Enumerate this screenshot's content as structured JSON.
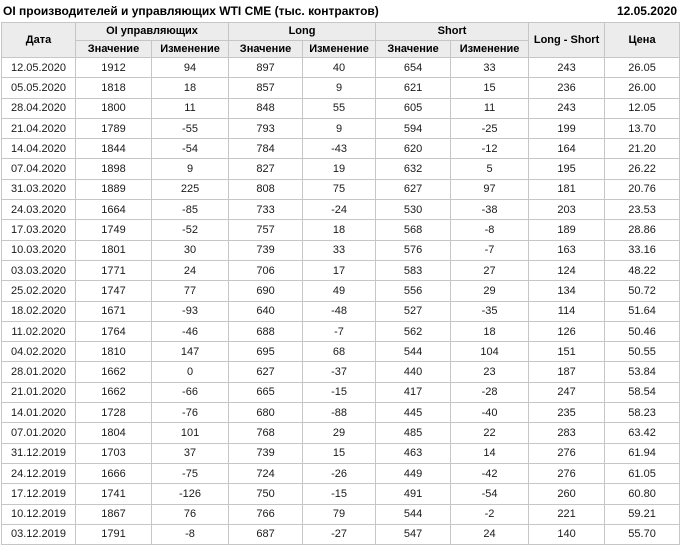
{
  "page": {
    "title": "OI производителей и управляющих WTI CME (тыс. контрактов)",
    "report_date": "12.05.2020"
  },
  "colors": {
    "positive_change": "#18a03a",
    "negative_change": "#dd0000",
    "header_background": "#ececec",
    "grid_border": "#c6c6c6"
  },
  "table": {
    "group_headers": {
      "date": "Дата",
      "oi": "OI управляющих",
      "long": "Long",
      "short": "Short",
      "net": "Long - Short",
      "price": "Цена"
    },
    "sub_headers": {
      "value": "Значение",
      "change": "Изменение"
    },
    "rows": [
      {
        "date": "12.05.2020",
        "oi_value": "1912",
        "oi_change": "94",
        "long_value": "897",
        "long_change": "40",
        "short_value": "654",
        "short_change": "33",
        "net": "243",
        "price": "26.05"
      },
      {
        "date": "05.05.2020",
        "oi_value": "1818",
        "oi_change": "18",
        "long_value": "857",
        "long_change": "9",
        "short_value": "621",
        "short_change": "15",
        "net": "236",
        "price": "26.00"
      },
      {
        "date": "28.04.2020",
        "oi_value": "1800",
        "oi_change": "11",
        "long_value": "848",
        "long_change": "55",
        "short_value": "605",
        "short_change": "11",
        "net": "243",
        "price": "12.05"
      },
      {
        "date": "21.04.2020",
        "oi_value": "1789",
        "oi_change": "-55",
        "long_value": "793",
        "long_change": "9",
        "short_value": "594",
        "short_change": "-25",
        "net": "199",
        "price": "13.70"
      },
      {
        "date": "14.04.2020",
        "oi_value": "1844",
        "oi_change": "-54",
        "long_value": "784",
        "long_change": "-43",
        "short_value": "620",
        "short_change": "-12",
        "net": "164",
        "price": "21.20"
      },
      {
        "date": "07.04.2020",
        "oi_value": "1898",
        "oi_change": "9",
        "long_value": "827",
        "long_change": "19",
        "short_value": "632",
        "short_change": "5",
        "net": "195",
        "price": "26.22"
      },
      {
        "date": "31.03.2020",
        "oi_value": "1889",
        "oi_change": "225",
        "long_value": "808",
        "long_change": "75",
        "short_value": "627",
        "short_change": "97",
        "net": "181",
        "price": "20.76"
      },
      {
        "date": "24.03.2020",
        "oi_value": "1664",
        "oi_change": "-85",
        "long_value": "733",
        "long_change": "-24",
        "short_value": "530",
        "short_change": "-38",
        "net": "203",
        "price": "23.53"
      },
      {
        "date": "17.03.2020",
        "oi_value": "1749",
        "oi_change": "-52",
        "long_value": "757",
        "long_change": "18",
        "short_value": "568",
        "short_change": "-8",
        "net": "189",
        "price": "28.86"
      },
      {
        "date": "10.03.2020",
        "oi_value": "1801",
        "oi_change": "30",
        "long_value": "739",
        "long_change": "33",
        "short_value": "576",
        "short_change": "-7",
        "net": "163",
        "price": "33.16"
      },
      {
        "date": "03.03.2020",
        "oi_value": "1771",
        "oi_change": "24",
        "long_value": "706",
        "long_change": "17",
        "short_value": "583",
        "short_change": "27",
        "net": "124",
        "price": "48.22"
      },
      {
        "date": "25.02.2020",
        "oi_value": "1747",
        "oi_change": "77",
        "long_value": "690",
        "long_change": "49",
        "short_value": "556",
        "short_change": "29",
        "net": "134",
        "price": "50.72"
      },
      {
        "date": "18.02.2020",
        "oi_value": "1671",
        "oi_change": "-93",
        "long_value": "640",
        "long_change": "-48",
        "short_value": "527",
        "short_change": "-35",
        "net": "114",
        "price": "51.64"
      },
      {
        "date": "11.02.2020",
        "oi_value": "1764",
        "oi_change": "-46",
        "long_value": "688",
        "long_change": "-7",
        "short_value": "562",
        "short_change": "18",
        "net": "126",
        "price": "50.46"
      },
      {
        "date": "04.02.2020",
        "oi_value": "1810",
        "oi_change": "147",
        "long_value": "695",
        "long_change": "68",
        "short_value": "544",
        "short_change": "104",
        "net": "151",
        "price": "50.55"
      },
      {
        "date": "28.01.2020",
        "oi_value": "1662",
        "oi_change": "0",
        "long_value": "627",
        "long_change": "-37",
        "short_value": "440",
        "short_change": "23",
        "net": "187",
        "price": "53.84"
      },
      {
        "date": "21.01.2020",
        "oi_value": "1662",
        "oi_change": "-66",
        "long_value": "665",
        "long_change": "-15",
        "short_value": "417",
        "short_change": "-28",
        "net": "247",
        "price": "58.54"
      },
      {
        "date": "14.01.2020",
        "oi_value": "1728",
        "oi_change": "-76",
        "long_value": "680",
        "long_change": "-88",
        "short_value": "445",
        "short_change": "-40",
        "net": "235",
        "price": "58.23"
      },
      {
        "date": "07.01.2020",
        "oi_value": "1804",
        "oi_change": "101",
        "long_value": "768",
        "long_change": "29",
        "short_value": "485",
        "short_change": "22",
        "net": "283",
        "price": "63.42"
      },
      {
        "date": "31.12.2019",
        "oi_value": "1703",
        "oi_change": "37",
        "long_value": "739",
        "long_change": "15",
        "short_value": "463",
        "short_change": "14",
        "net": "276",
        "price": "61.94"
      },
      {
        "date": "24.12.2019",
        "oi_value": "1666",
        "oi_change": "-75",
        "long_value": "724",
        "long_change": "-26",
        "short_value": "449",
        "short_change": "-42",
        "net": "276",
        "price": "61.05"
      },
      {
        "date": "17.12.2019",
        "oi_value": "1741",
        "oi_change": "-126",
        "long_value": "750",
        "long_change": "-15",
        "short_value": "491",
        "short_change": "-54",
        "net": "260",
        "price": "60.80"
      },
      {
        "date": "10.12.2019",
        "oi_value": "1867",
        "oi_change": "76",
        "long_value": "766",
        "long_change": "79",
        "short_value": "544",
        "short_change": "-2",
        "net": "221",
        "price": "59.21"
      },
      {
        "date": "03.12.2019",
        "oi_value": "1791",
        "oi_change": "-8",
        "long_value": "687",
        "long_change": "-27",
        "short_value": "547",
        "short_change": "24",
        "net": "140",
        "price": "55.70"
      }
    ]
  }
}
